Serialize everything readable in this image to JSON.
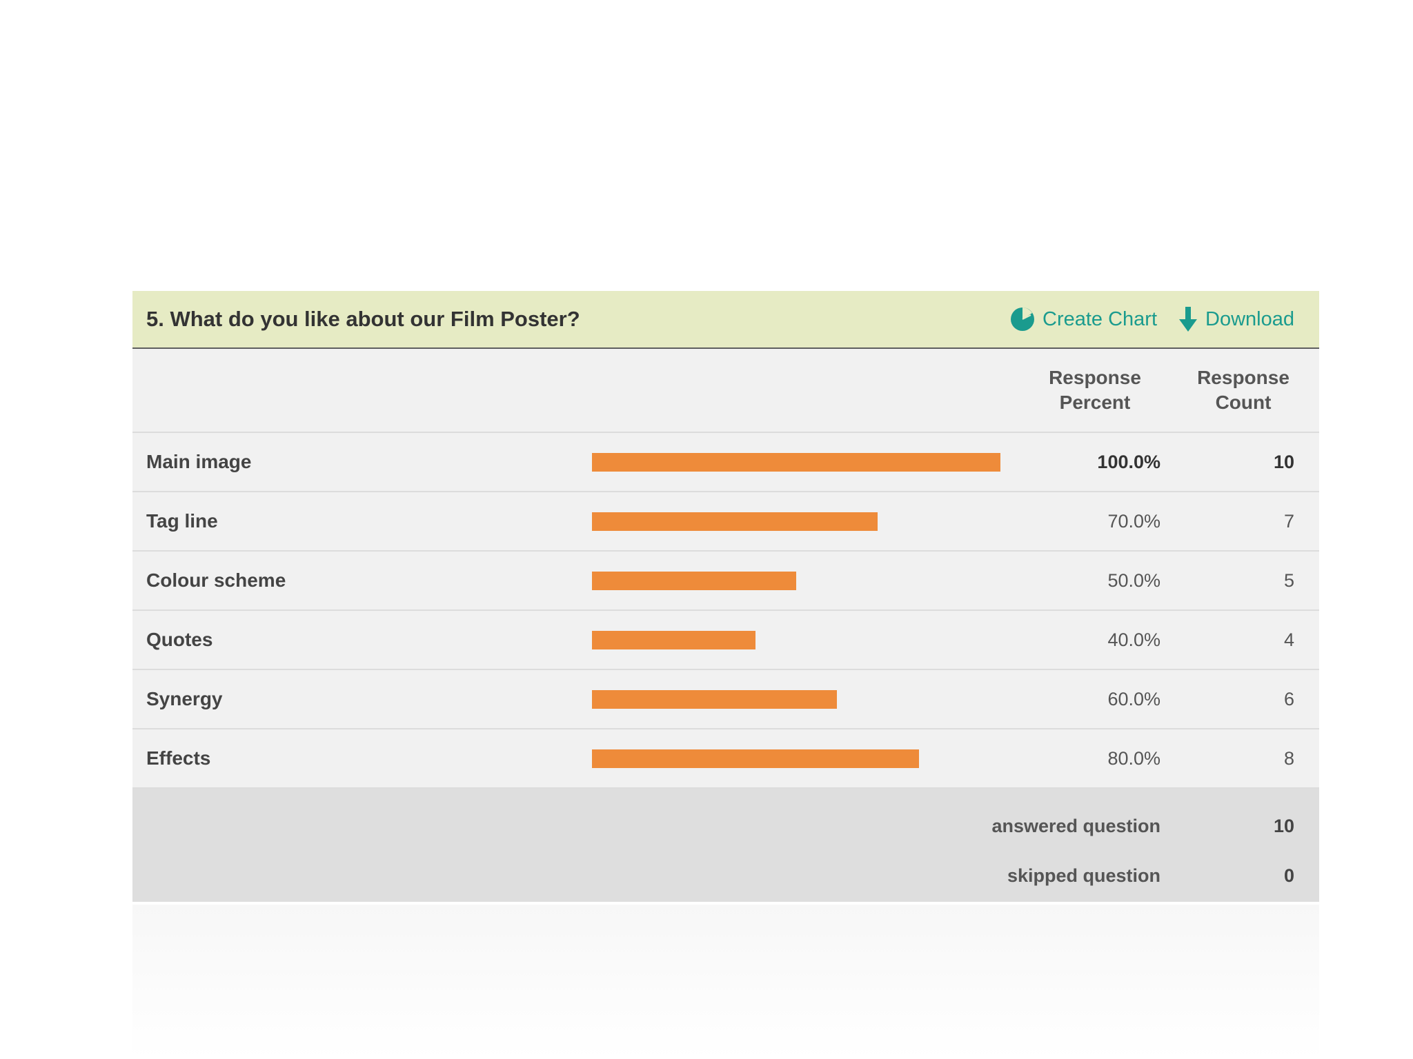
{
  "header": {
    "question": "5. What do you like about our Film Poster?",
    "create_chart_label": "Create Chart",
    "download_label": "Download",
    "accent_color": "#1a9b8e"
  },
  "columns": {
    "percent_label": "Response Percent",
    "percent_line1": "Response",
    "percent_line2": "Percent",
    "count_line1": "Response",
    "count_line2": "Count"
  },
  "chart_data": {
    "type": "bar",
    "orientation": "horizontal",
    "categories": [
      "Main image",
      "Tag line",
      "Colour scheme",
      "Quotes",
      "Synergy",
      "Effects"
    ],
    "values": [
      100.0,
      70.0,
      50.0,
      40.0,
      60.0,
      80.0
    ],
    "percent_labels": [
      "100.0%",
      "70.0%",
      "50.0%",
      "40.0%",
      "60.0%",
      "80.0%"
    ],
    "counts": [
      10,
      7,
      5,
      4,
      6,
      8
    ],
    "xlim": [
      0,
      100
    ],
    "bar_color": "#ee8b3a"
  },
  "summary": {
    "answered_label": "answered question",
    "answered_value": "10",
    "skipped_label": "skipped question",
    "skipped_value": "0"
  }
}
